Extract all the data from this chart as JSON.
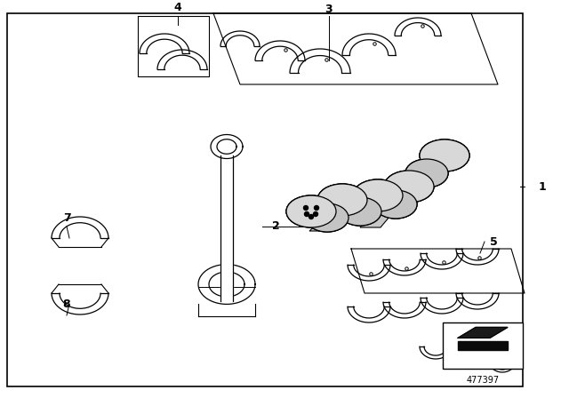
{
  "bg_color": "#ffffff",
  "line_color": "#000000",
  "text_color": "#000000",
  "part_number": "477397",
  "fig_width": 6.4,
  "fig_height": 4.48,
  "dpi": 100
}
